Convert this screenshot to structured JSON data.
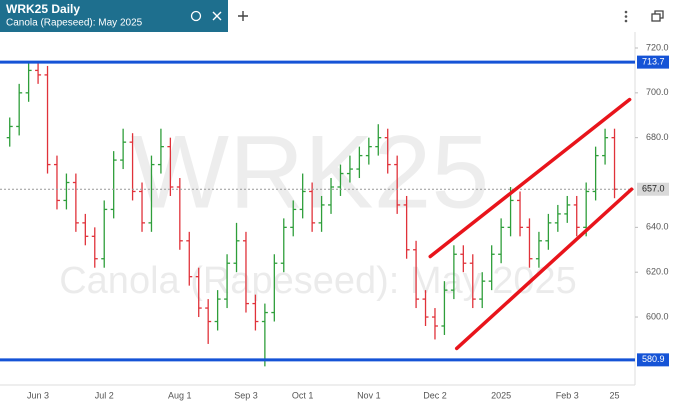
{
  "chart_data": {
    "type": "ohlc",
    "symbol": "WRK25",
    "interval": "Daily",
    "subtitle": "Canola (Rapeseed): May 2025",
    "categories": [
      null,
      null,
      null,
      "Jun 3",
      null,
      null,
      null,
      null,
      null,
      null,
      "Jul 2",
      null,
      null,
      null,
      null,
      null,
      null,
      null,
      "Aug 1",
      null,
      null,
      null,
      null,
      null,
      null,
      "Sep 3",
      null,
      null,
      null,
      null,
      null,
      "Oct 1",
      null,
      null,
      null,
      null,
      null,
      null,
      "Nov 1",
      null,
      null,
      null,
      null,
      null,
      null,
      "Dec 2",
      null,
      null,
      null,
      null,
      null,
      null,
      "2025",
      null,
      null,
      null,
      null,
      null,
      null,
      "Feb 3",
      null,
      null,
      null,
      null,
      "25"
    ],
    "open": [
      680,
      685,
      700,
      710,
      708,
      668,
      652,
      660,
      642,
      636,
      626,
      648,
      670,
      678,
      656,
      642,
      668,
      676,
      658,
      634,
      618,
      604,
      598,
      608,
      624,
      634,
      606,
      598,
      602,
      624,
      640,
      648,
      656,
      642,
      650,
      658,
      664,
      666,
      672,
      676,
      680,
      668,
      650,
      630,
      608,
      600,
      596,
      612,
      628,
      624,
      608,
      616,
      628,
      640,
      652,
      640,
      626,
      634,
      642,
      646,
      650,
      640,
      656,
      672,
      680
    ],
    "high": [
      689,
      704,
      714,
      714,
      712,
      672,
      664,
      664,
      646,
      640,
      652,
      674,
      684,
      682,
      660,
      672,
      684,
      680,
      662,
      638,
      622,
      608,
      612,
      628,
      642,
      638,
      610,
      606,
      628,
      644,
      652,
      664,
      660,
      654,
      662,
      668,
      672,
      676,
      680,
      686,
      684,
      672,
      654,
      634,
      612,
      604,
      616,
      632,
      632,
      628,
      620,
      632,
      644,
      658,
      656,
      644,
      638,
      646,
      650,
      654,
      654,
      660,
      676,
      684,
      684
    ],
    "low": [
      676,
      681,
      696,
      704,
      664,
      648,
      648,
      638,
      632,
      622,
      622,
      644,
      666,
      652,
      638,
      638,
      664,
      654,
      630,
      614,
      600,
      588,
      594,
      604,
      620,
      602,
      594,
      578,
      598,
      620,
      636,
      644,
      638,
      638,
      646,
      654,
      660,
      662,
      668,
      672,
      664,
      646,
      626,
      604,
      596,
      590,
      592,
      608,
      620,
      604,
      604,
      612,
      624,
      636,
      636,
      622,
      622,
      630,
      638,
      642,
      636,
      636,
      652,
      668,
      653
    ],
    "close": [
      685,
      700,
      710,
      708,
      668,
      652,
      660,
      642,
      636,
      626,
      648,
      670,
      678,
      656,
      642,
      668,
      676,
      658,
      634,
      618,
      604,
      598,
      608,
      624,
      634,
      606,
      598,
      602,
      624,
      640,
      648,
      656,
      642,
      650,
      658,
      664,
      666,
      672,
      676,
      680,
      668,
      650,
      630,
      608,
      600,
      596,
      612,
      628,
      624,
      608,
      616,
      628,
      640,
      652,
      640,
      626,
      634,
      642,
      646,
      650,
      640,
      656,
      672,
      680,
      657
    ],
    "up_color": "#2e9e3a",
    "down_color": "#e0323a",
    "ylim": [
      565,
      727
    ],
    "yticks": [
      {
        "value": 600,
        "label": "600.0"
      },
      {
        "value": 620,
        "label": "620.0"
      },
      {
        "value": 640,
        "label": "640.0"
      },
      {
        "value": 680,
        "label": "680.0"
      },
      {
        "value": 700,
        "label": "700.0"
      },
      {
        "value": 720,
        "label": "720.0"
      }
    ],
    "hlines": [
      {
        "value": 713.7,
        "value_label": "713.7",
        "color": "#1553d6"
      },
      {
        "value": 580.9,
        "value_label": "580.9",
        "color": "#1553d6"
      }
    ],
    "last_price": {
      "value": 657.0,
      "value_label": "657.0"
    },
    "trendlines": [
      {
        "x": [
          44.5,
          65.6
        ],
        "y": [
          627,
          697
        ],
        "color": "#e8141b"
      },
      {
        "x": [
          47.3,
          65.8
        ],
        "y": [
          586,
          657
        ],
        "color": "#e8141b"
      }
    ]
  }
}
